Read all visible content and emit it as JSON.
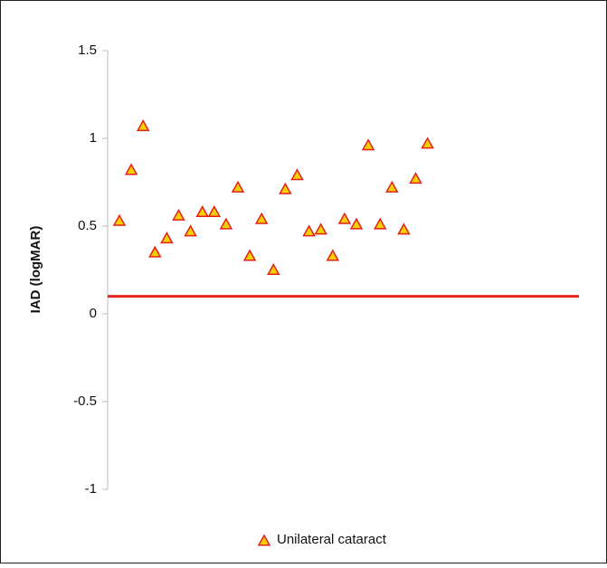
{
  "chart_data": {
    "type": "scatter",
    "y_label": "IAD (logMAR)",
    "series": [
      {
        "name": "Unilateral cataract",
        "marker": "triangle",
        "color": "#f5d000",
        "edge_color": "#e3201b",
        "values": [
          0.53,
          0.82,
          1.07,
          0.35,
          0.43,
          0.56,
          0.47,
          0.58,
          0.58,
          0.51,
          0.72,
          0.33,
          0.54,
          0.25,
          0.71,
          0.79,
          0.47,
          0.48,
          0.33,
          0.54,
          0.51,
          0.96,
          0.51,
          0.72,
          0.48,
          0.77,
          0.97
        ]
      }
    ],
    "reference_line": {
      "value": 0.1,
      "color": "#e8231c"
    },
    "ylim": [
      -1,
      1.5
    ],
    "yticks": [
      -1,
      -0.5,
      0,
      0.5,
      1,
      1.5
    ],
    "legend": "bottom"
  }
}
